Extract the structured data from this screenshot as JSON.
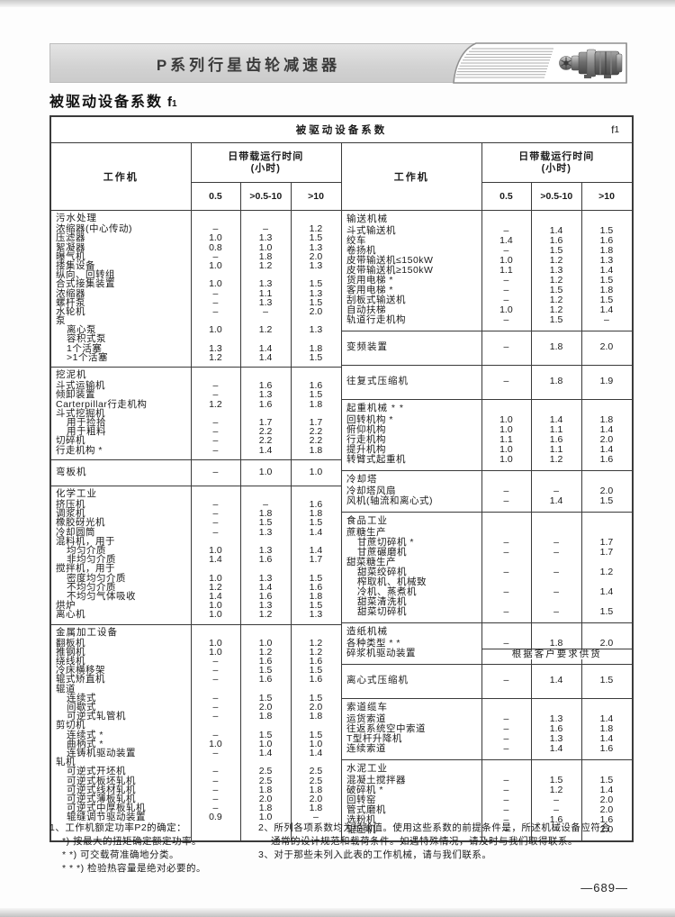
{
  "header": {
    "title": "P系列行星齿轮减速器"
  },
  "section": {
    "title": "被驱动设备系数",
    "coef": "f",
    "coef_sub": "1"
  },
  "table": {
    "caption": "被驱动设备系数",
    "caption_f": "f",
    "caption_fsub": "1",
    "machine_col": "工作机",
    "time_line1": "日带载运行时间",
    "time_line2": "(小时)",
    "subcols": [
      "0.5",
      ">0.5-10",
      ">10"
    ],
    "left_sections": [
      {
        "title": "污水处理",
        "rows": [
          {
            "label": "浓缩器(中心传动)",
            "v": [
              "–",
              "–",
              "1.2"
            ]
          },
          {
            "label": "压滤器",
            "v": [
              "1.0",
              "1.3",
              "1.5"
            ]
          },
          {
            "label": "絮凝器",
            "v": [
              "0.8",
              "1.0",
              "1.3"
            ]
          },
          {
            "label": "曝气机",
            "v": [
              "–",
              "1.8",
              "2.0"
            ]
          },
          {
            "label": "搂集设备",
            "v": [
              "1.0",
              "1.2",
              "1.3"
            ]
          },
          {
            "label": "纵向、回转组"
          },
          {
            "label": "合式接集装置",
            "v": [
              "1.0",
              "1.3",
              "1.5"
            ]
          },
          {
            "label": "浓缩器",
            "v": [
              "–",
              "1.1",
              "1.3"
            ]
          },
          {
            "label": "螺杆泵",
            "v": [
              "–",
              "1.3",
              "1.5"
            ]
          },
          {
            "label": "水轮机",
            "v": [
              "–",
              "–",
              "2.0"
            ]
          },
          {
            "label": "泵"
          },
          {
            "label": "离心泵",
            "indent": 1,
            "v": [
              "1.0",
              "1.2",
              "1.3"
            ]
          },
          {
            "label": "容积式泵",
            "indent": 1
          },
          {
            "label": "1个活塞",
            "indent": 1,
            "v": [
              "1.3",
              "1.4",
              "1.8"
            ]
          },
          {
            "label": ">1个活塞",
            "indent": 1,
            "v": [
              "1.2",
              "1.4",
              "1.5"
            ]
          }
        ]
      },
      {
        "title": "挖泥机",
        "rows": [
          {
            "label": "斗式运输机",
            "v": [
              "–",
              "1.6",
              "1.6"
            ]
          },
          {
            "label": "倾卸装置",
            "v": [
              "–",
              "1.3",
              "1.5"
            ]
          },
          {
            "label": "Carterpillar行走机构",
            "v": [
              "1.2",
              "1.6",
              "1.8"
            ]
          },
          {
            "label": "斗式挖掘机"
          },
          {
            "label": "用于捡拾",
            "indent": 1,
            "v": [
              "–",
              "1.7",
              "1.7"
            ]
          },
          {
            "label": "用于粗料",
            "indent": 1,
            "v": [
              "–",
              "2.2",
              "2.2"
            ]
          },
          {
            "label": "切碎机",
            "v": [
              "–",
              "2.2",
              "2.2"
            ]
          },
          {
            "label": "行走机构 *",
            "v": [
              "–",
              "1.4",
              "1.8"
            ]
          }
        ]
      },
      {
        "title": "弯板机",
        "single": true,
        "values": [
          "–",
          "1.0",
          "1.0"
        ]
      },
      {
        "title": "化学工业",
        "rows": [
          {
            "label": "挤压机",
            "v": [
              "–",
              "–",
              "1.6"
            ]
          },
          {
            "label": "调浆机",
            "v": [
              "–",
              "1.8",
              "1.8"
            ]
          },
          {
            "label": "橡胶砑光机",
            "v": [
              "–",
              "1.5",
              "1.5"
            ]
          },
          {
            "label": "冷却圆筒",
            "v": [
              "–",
              "1.3",
              "1.4"
            ]
          },
          {
            "label": "混料机，用于"
          },
          {
            "label": "均匀介质",
            "indent": 1,
            "v": [
              "1.0",
              "1.3",
              "1.4"
            ]
          },
          {
            "label": "非均匀介质",
            "indent": 1,
            "v": [
              "1.4",
              "1.6",
              "1.7"
            ]
          },
          {
            "label": "搅拌机，用于"
          },
          {
            "label": "密度均匀介质",
            "indent": 1,
            "v": [
              "1.0",
              "1.3",
              "1.5"
            ]
          },
          {
            "label": "不均匀介质",
            "indent": 1,
            "v": [
              "1.2",
              "1.4",
              "1.6"
            ]
          },
          {
            "label": "不均匀气体吸收",
            "indent": 1,
            "v": [
              "1.4",
              "1.6",
              "1.8"
            ]
          },
          {
            "label": "烘炉",
            "v": [
              "1.0",
              "1.3",
              "1.5"
            ]
          },
          {
            "label": "离心机",
            "v": [
              "1.0",
              "1.2",
              "1.3"
            ]
          }
        ]
      },
      {
        "title": "金属加工设备",
        "rows": [
          {
            "label": "翻板机",
            "v": [
              "1.0",
              "1.0",
              "1.2"
            ]
          },
          {
            "label": "推钢机",
            "v": [
              "1.0",
              "1.2",
              "1.2"
            ]
          },
          {
            "label": "绕线机",
            "v": [
              "–",
              "1.6",
              "1.6"
            ]
          },
          {
            "label": "冷床横移架",
            "v": [
              "–",
              "1.5",
              "1.5"
            ]
          },
          {
            "label": "辊式矫直机",
            "v": [
              "–",
              "1.6",
              "1.6"
            ]
          },
          {
            "label": "辊道"
          },
          {
            "label": "连续式",
            "indent": 1,
            "v": [
              "–",
              "1.5",
              "1.5"
            ]
          },
          {
            "label": "间歇式",
            "indent": 1,
            "v": [
              "–",
              "2.0",
              "2.0"
            ]
          },
          {
            "label": "可逆式轧管机",
            "indent": 1,
            "v": [
              "–",
              "1.8",
              "1.8"
            ]
          },
          {
            "label": "剪切机"
          },
          {
            "label": "连续式 *",
            "indent": 1,
            "v": [
              "–",
              "1.5",
              "1.5"
            ]
          },
          {
            "label": "曲柄式 *",
            "indent": 1,
            "v": [
              "1.0",
              "1.0",
              "1.0"
            ]
          },
          {
            "label": "连铸机驱动装置",
            "indent": 1,
            "v": [
              "–",
              "1.4",
              "1.4"
            ]
          },
          {
            "label": "轧机"
          },
          {
            "label": "可逆式开坯机",
            "indent": 1,
            "v": [
              "–",
              "2.5",
              "2.5"
            ]
          },
          {
            "label": "可逆式板坯轧机",
            "indent": 1,
            "v": [
              "–",
              "2.5",
              "2.5"
            ]
          },
          {
            "label": "可逆式线材轧机",
            "indent": 1,
            "v": [
              "–",
              "1.8",
              "1.8"
            ]
          },
          {
            "label": "可逆式薄板轧机",
            "indent": 1,
            "v": [
              "–",
              "2.0",
              "2.0"
            ]
          },
          {
            "label": "可逆式中厚板轧机",
            "indent": 1,
            "v": [
              "–",
              "1.8",
              "1.8"
            ]
          },
          {
            "label": "辊缝调节驱动装置",
            "indent": 1,
            "v": [
              "0.9",
              "1.0",
              "–"
            ]
          }
        ]
      }
    ],
    "right_sections": [
      {
        "title": "输送机械",
        "rows": [
          {
            "label": "斗式输送机",
            "v": [
              "–",
              "1.4",
              "1.5"
            ]
          },
          {
            "label": "绞车",
            "v": [
              "1.4",
              "1.6",
              "1.6"
            ]
          },
          {
            "label": "卷扬机",
            "v": [
              "–",
              "1.5",
              "1.8"
            ]
          },
          {
            "label": "皮带输送机≤150kW",
            "v": [
              "1.0",
              "1.2",
              "1.3"
            ]
          },
          {
            "label": "皮带输送机≥150kW",
            "v": [
              "1.1",
              "1.3",
              "1.4"
            ]
          },
          {
            "label": "货用电梯 *",
            "v": [
              "–",
              "1.2",
              "1.5"
            ]
          },
          {
            "label": "客用电梯 *",
            "v": [
              "–",
              "1.5",
              "1.8"
            ]
          },
          {
            "label": "刮板式输送机",
            "v": [
              "–",
              "1.2",
              "1.5"
            ]
          },
          {
            "label": "自动扶梯",
            "v": [
              "1.0",
              "1.2",
              "1.4"
            ]
          },
          {
            "label": "轨道行走机构",
            "v": [
              "–",
              "1.5",
              "–"
            ]
          }
        ]
      },
      {
        "title": "变频装置",
        "single": true,
        "values": [
          "–",
          "1.8",
          "2.0"
        ]
      },
      {
        "title": "往复式压缩机",
        "single": true,
        "values": [
          "–",
          "1.8",
          "1.9"
        ]
      },
      {
        "title": "起重机械 * *",
        "rows": [
          {
            "label": "回转机构 *",
            "v": [
              "1.0",
              "1.4",
              "1.8"
            ]
          },
          {
            "label": "俯仰机构",
            "v": [
              "1.0",
              "1.1",
              "1.4"
            ]
          },
          {
            "label": "行走机构",
            "v": [
              "1.1",
              "1.6",
              "2.0"
            ]
          },
          {
            "label": "提升机构",
            "v": [
              "1.0",
              "1.1",
              "1.4"
            ]
          },
          {
            "label": "转臂式起重机",
            "v": [
              "1.0",
              "1.2",
              "1.6"
            ]
          }
        ]
      },
      {
        "title": "冷却塔",
        "rows": [
          {
            "label": "冷却塔风扇",
            "v": [
              "–",
              "–",
              "2.0"
            ]
          },
          {
            "label": "风机(轴流和离心式)",
            "v": [
              "–",
              "1.4",
              "1.5"
            ]
          }
        ]
      },
      {
        "title": "食品工业",
        "rows": [
          {
            "label": "蔗糖生产"
          },
          {
            "label": "甘蔗切碎机 *",
            "indent": 1,
            "v": [
              "–",
              "–",
              "1.7"
            ]
          },
          {
            "label": "甘蔗碾磨机",
            "indent": 1,
            "v": [
              "–",
              "–",
              "1.7"
            ]
          },
          {
            "label": "甜菜糖生产"
          },
          {
            "label": "甜菜绞碎机",
            "indent": 1,
            "v": [
              "–",
              "–",
              "1.2"
            ]
          },
          {
            "label": "榨取机、机械致",
            "indent": 1
          },
          {
            "label": "冷机、蒸煮机",
            "indent": 1,
            "v": [
              "–",
              "–",
              "1.4"
            ]
          },
          {
            "label": "甜菜清洗机",
            "indent": 1
          },
          {
            "label": "甜菜切碎机",
            "indent": 1,
            "v": [
              "–",
              "–",
              "1.5"
            ]
          }
        ]
      },
      {
        "title": "造纸机械",
        "rows": [
          {
            "label": "各种类型 * *",
            "v": [
              "–",
              "1.8",
              "2.0"
            ]
          },
          {
            "label": "碎浆机驱动装置",
            "merged": "根据客户要求供货"
          }
        ]
      },
      {
        "title": "离心式压缩机",
        "single": true,
        "values": [
          "–",
          "1.4",
          "1.5"
        ]
      },
      {
        "title": "索道缆车",
        "rows": [
          {
            "label": "运货索道",
            "v": [
              "–",
              "1.3",
              "1.4"
            ]
          },
          {
            "label": "往返系统空中索道",
            "v": [
              "–",
              "1.6",
              "1.8"
            ]
          },
          {
            "label": "T型杆升降机",
            "v": [
              "–",
              "1.3",
              "1.4"
            ]
          },
          {
            "label": "连续索道",
            "v": [
              "–",
              "1.4",
              "1.6"
            ]
          }
        ]
      },
      {
        "title": "水泥工业",
        "rows": [
          {
            "label": "混凝土搅拌器",
            "v": [
              "–",
              "1.5",
              "1.5"
            ]
          },
          {
            "label": "破碎机 *",
            "v": [
              "–",
              "1.2",
              "1.4"
            ]
          },
          {
            "label": "回转窑",
            "v": [
              "–",
              "–",
              "2.0"
            ]
          },
          {
            "label": "管式磨机",
            "v": [
              "–",
              "–",
              "2.0"
            ]
          },
          {
            "label": "选粉机",
            "v": [
              "–",
              "1.6",
              "1.6"
            ]
          },
          {
            "label": "辊压机",
            "v": [
              "–",
              "–",
              "2.0"
            ]
          }
        ]
      }
    ]
  },
  "notes": {
    "n1_num": "1、",
    "n1_text": "工作机额定功率P2的确定：",
    "n1_subs": [
      "*) 按最大的扭矩确定额定功率。",
      "* *) 可交载荷准确地分类。",
      "* * *) 检验热容量是绝对必要的。"
    ],
    "n2_num": "2、",
    "n2_lines": [
      "所列各项系数均为经验值。使用这些系数的前提条件是，所述机械设备应符合",
      "通常的设计规范和载荷条件。如遇特殊情况，请及时与我们取得联系。"
    ],
    "n3_num": "3、",
    "n3_text": "对于那些未列入此表的工作机械，请与我们联系。"
  },
  "footer": {
    "page_number": "—689—"
  }
}
